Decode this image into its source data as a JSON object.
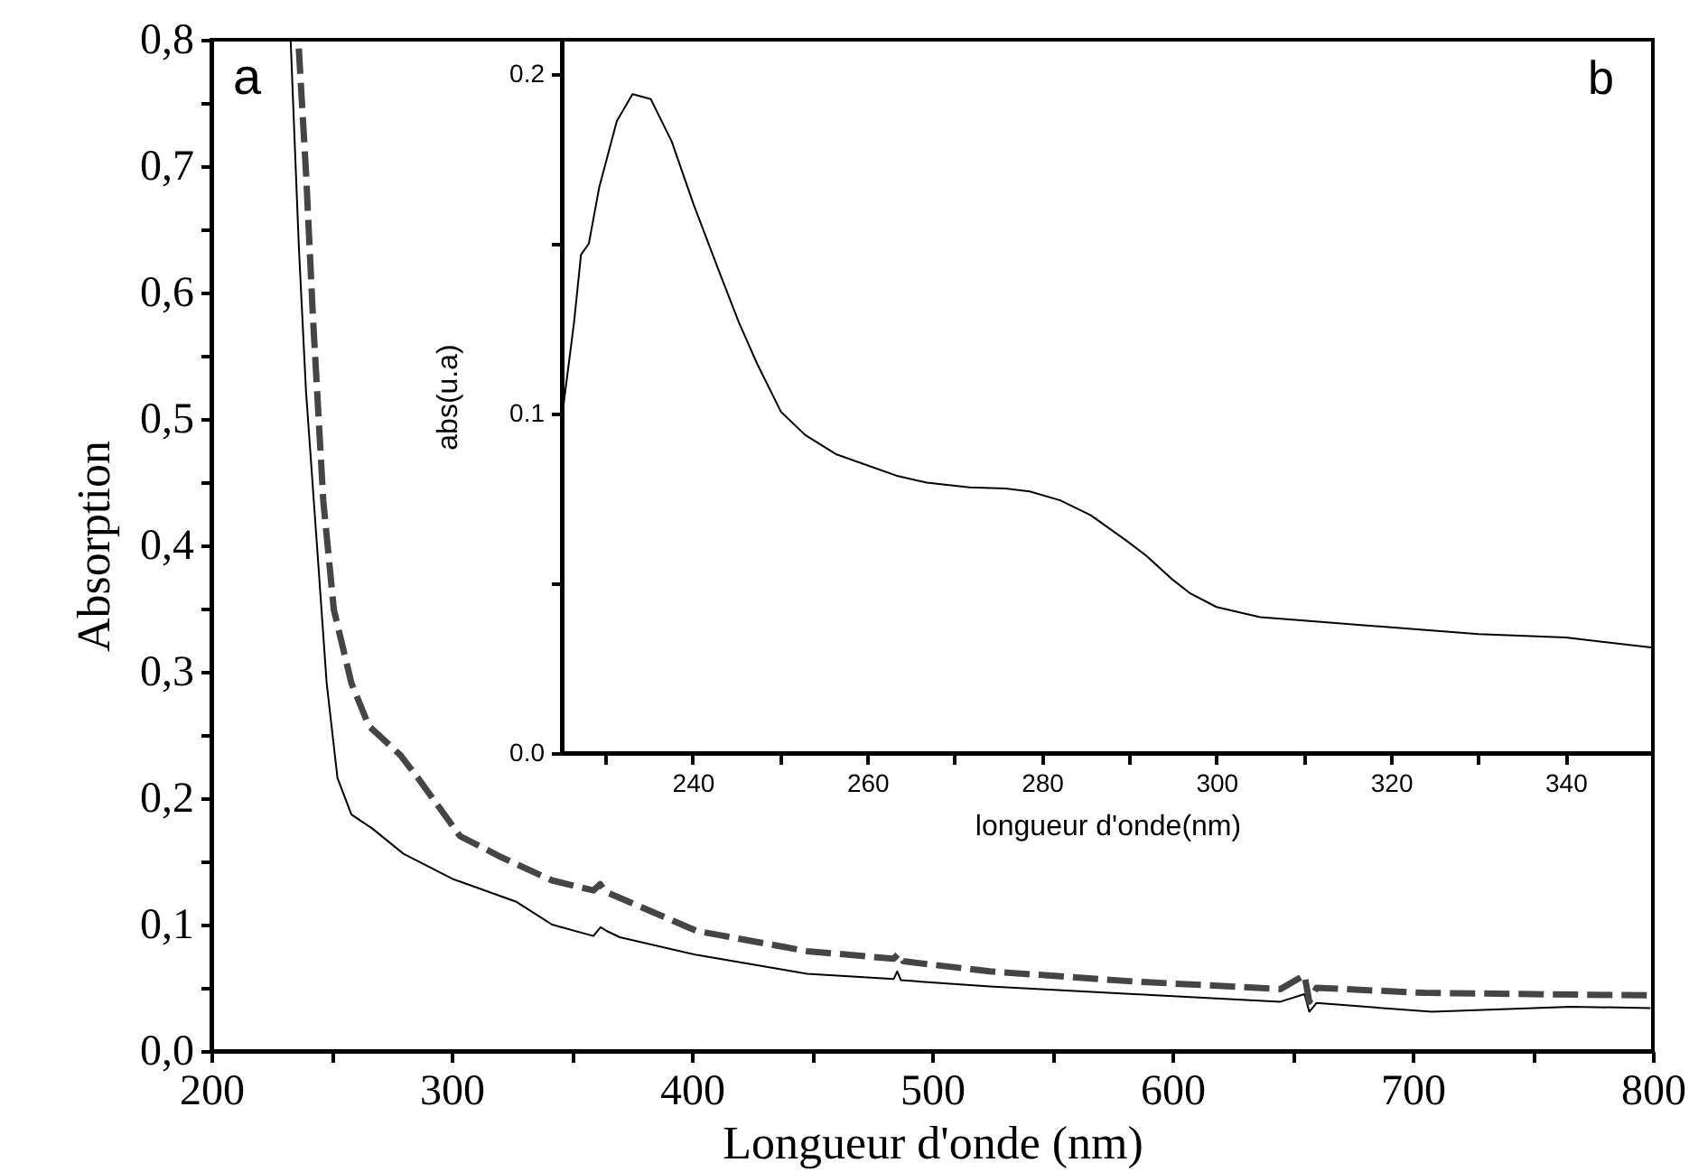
{
  "chart_data": [
    {
      "type": "line",
      "xlabel": "Longueur d'onde (nm)",
      "ylabel": "Absorption",
      "annotations": [
        "a"
      ],
      "xlim": [
        200,
        800
      ],
      "ylim": [
        0,
        0.8
      ],
      "xticks": [
        200,
        {
          "value": 250,
          "label": null
        },
        300,
        {
          "value": 350,
          "label": null
        },
        400,
        {
          "value": 450,
          "label": null
        },
        500,
        {
          "value": 550,
          "label": null
        },
        600,
        {
          "value": 650,
          "label": null
        },
        700,
        {
          "value": 750,
          "label": null
        },
        800
      ],
      "yticks": [
        {
          "value": 0,
          "label": "0,0"
        },
        {
          "value": 0.05,
          "label": null
        },
        {
          "value": 0.1,
          "label": "0,1"
        },
        {
          "value": 0.15,
          "label": null
        },
        {
          "value": 0.2,
          "label": "0,2"
        },
        {
          "value": 0.25,
          "label": null
        },
        {
          "value": 0.3,
          "label": "0,3"
        },
        {
          "value": 0.35,
          "label": null
        },
        {
          "value": 0.4,
          "label": "0,4"
        },
        {
          "value": 0.45,
          "label": null
        },
        {
          "value": 0.5,
          "label": "0,5"
        },
        {
          "value": 0.55,
          "label": null
        },
        {
          "value": 0.6,
          "label": "0,6"
        },
        {
          "value": 0.65,
          "label": null
        },
        {
          "value": 0.7,
          "label": "0,7"
        },
        {
          "value": 0.75,
          "label": null
        },
        {
          "value": 0.8,
          "label": "0,8"
        }
      ],
      "grid": false,
      "legend": false,
      "series": [
        {
          "color": "#000000",
          "line_style": "solid",
          "x": [
            233,
            236.4,
            239.4,
            243.7,
            248,
            252.5,
            258.3,
            267,
            280,
            300.6,
            327,
            341.8,
            359,
            362,
            364.5,
            370,
            402,
            448,
            484,
            485.5,
            487,
            524,
            584,
            645,
            655,
            657,
            660,
            708,
            766,
            799
          ],
          "values": [
            0.8,
            0.637,
            0.522,
            0.407,
            0.291,
            0.216,
            0.187,
            0.176,
            0.156,
            0.136,
            0.118,
            0.1,
            0.091,
            0.098,
            0.095,
            0.09,
            0.076,
            0.061,
            0.057,
            0.063,
            0.056,
            0.051,
            0.045,
            0.039,
            0.045,
            0.031,
            0.038,
            0.031,
            0.035,
            0.034
          ]
        },
        {
          "color": "#454545",
          "line_style": "dashed",
          "x": [
            236.4,
            239.4,
            242.3,
            246.6,
            251,
            258.3,
            265.6,
            278.7,
            286,
            303.5,
            321,
            341.8,
            359,
            361.8,
            364,
            402,
            448,
            484,
            486,
            488,
            524,
            584,
            645,
            655,
            657,
            660,
            705,
            750,
            799
          ],
          "values": [
            0.793,
            0.695,
            0.58,
            0.435,
            0.349,
            0.291,
            0.257,
            0.234,
            0.216,
            0.17,
            0.153,
            0.135,
            0.127,
            0.132,
            0.126,
            0.095,
            0.079,
            0.073,
            0.077,
            0.071,
            0.063,
            0.055,
            0.049,
            0.06,
            0.039,
            0.05,
            0.046,
            0.045,
            0.044
          ]
        }
      ]
    },
    {
      "type": "line",
      "xlabel": "longueur d'onde(nm)",
      "ylabel": "abs(u.a)",
      "annotations": [
        "b"
      ],
      "xlim": [
        225,
        350
      ],
      "ylim": [
        0,
        0.21
      ],
      "xticks": [
        {
          "value": 230,
          "label": null
        },
        240,
        {
          "value": 250,
          "label": null
        },
        260,
        {
          "value": 270,
          "label": null
        },
        280,
        {
          "value": 290,
          "label": null
        },
        300,
        {
          "value": 310,
          "label": null
        },
        320,
        {
          "value": 330,
          "label": null
        },
        340
      ],
      "yticks": [
        {
          "value": 0,
          "label": "0.0"
        },
        {
          "value": 0.05,
          "label": null
        },
        {
          "value": 0.1,
          "label": "0.1"
        },
        {
          "value": 0.15,
          "label": null
        },
        {
          "value": 0.2,
          "label": "0.2"
        }
      ],
      "grid": false,
      "legend": false,
      "series": [
        {
          "color": "#000000",
          "line_style": "solid",
          "x": [
            225.1,
            226.4,
            227.2,
            228.1,
            229.3,
            231.3,
            233.1,
            235.2,
            237.6,
            240.1,
            243.2,
            245.3,
            247.4,
            250.1,
            252.9,
            256.4,
            259.9,
            263.3,
            266.8,
            271.7,
            275.8,
            278.6,
            282.1,
            285.6,
            289.7,
            292,
            295,
            297,
            300,
            305,
            310,
            320,
            330,
            340,
            350
          ],
          "values": [
            0.1005,
            0.1267,
            0.1467,
            0.15,
            0.1667,
            0.186,
            0.194,
            0.1925,
            0.18,
            0.1615,
            0.1406,
            0.1267,
            0.1145,
            0.1005,
            0.0936,
            0.088,
            0.0848,
            0.0817,
            0.0796,
            0.0782,
            0.0779,
            0.077,
            0.0744,
            0.07,
            0.0625,
            0.058,
            0.051,
            0.047,
            0.043,
            0.04,
            0.039,
            0.037,
            0.035,
            0.034,
            0.031
          ]
        }
      ]
    }
  ]
}
